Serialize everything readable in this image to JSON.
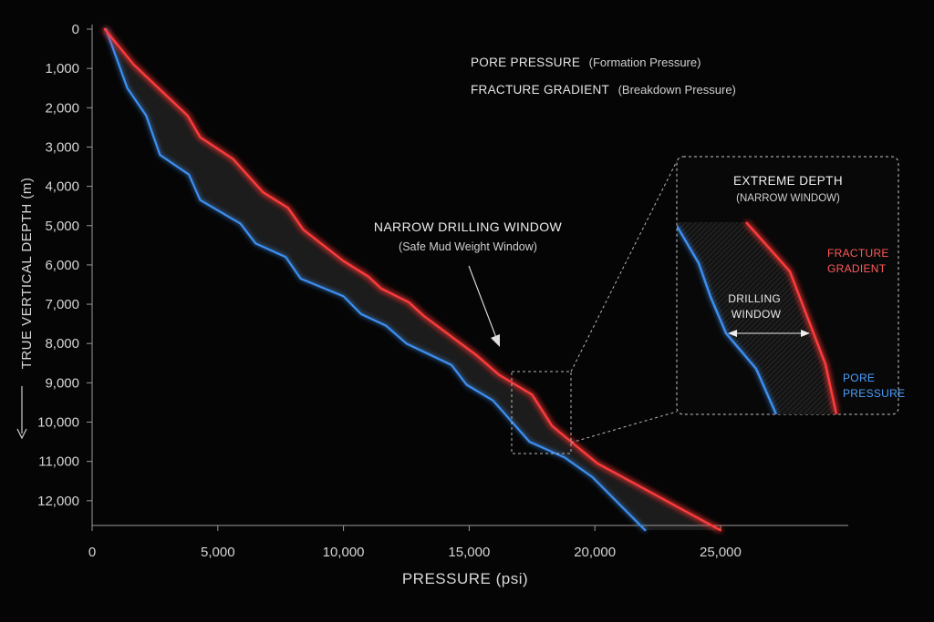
{
  "chart_data": {
    "type": "line",
    "xlabel": "PRESSURE (psi)",
    "ylabel": "TRUE VERTICAL DEPTH (m)",
    "x_ticks": [
      0,
      5000,
      10000,
      15000,
      20000,
      25000
    ],
    "x_tick_labels": [
      "0",
      "5,000",
      "10,000",
      "15,000",
      "20,000",
      "25,000"
    ],
    "y_ticks": [
      0,
      1000,
      2000,
      3000,
      4000,
      5000,
      6000,
      7000,
      8000,
      9000,
      10000,
      11000,
      12000
    ],
    "y_tick_labels": [
      "0",
      "1,000",
      "2,000",
      "3,000",
      "4,000",
      "5,000",
      "6,000",
      "7,000",
      "8,000",
      "9,000",
      "10,000",
      "11,000",
      "12,000"
    ],
    "xlim": [
      0,
      26000
    ],
    "ylim": [
      12850,
      0
    ],
    "y_inverted": true,
    "grid": false,
    "legend_position": "top-center",
    "colors": {
      "pore": "#3d8ff0",
      "fracture": "#ff3b3b",
      "window_fill": "#2a2a2a"
    },
    "series": [
      {
        "name": "PORE PRESSURE",
        "description": "(Formation Pressure)",
        "color_key": "pore",
        "points": [
          [
            550,
            0
          ],
          [
            1400,
            1500
          ],
          [
            2150,
            2200
          ],
          [
            2700,
            3200
          ],
          [
            3850,
            3700
          ],
          [
            4300,
            4350
          ],
          [
            5900,
            4950
          ],
          [
            6500,
            5450
          ],
          [
            7700,
            5800
          ],
          [
            8300,
            6350
          ],
          [
            10000,
            6800
          ],
          [
            10700,
            7250
          ],
          [
            11700,
            7550
          ],
          [
            12500,
            8000
          ],
          [
            14300,
            8550
          ],
          [
            14900,
            9050
          ],
          [
            15950,
            9450
          ],
          [
            17400,
            10500
          ],
          [
            18800,
            10900
          ],
          [
            19900,
            11400
          ],
          [
            22000,
            12750
          ]
        ]
      },
      {
        "name": "FRACTURE GRADIENT",
        "description": "(Breakdown Pressure)",
        "color_key": "fracture",
        "points": [
          [
            500,
            0
          ],
          [
            1650,
            900
          ],
          [
            2800,
            1600
          ],
          [
            3800,
            2200
          ],
          [
            4300,
            2750
          ],
          [
            5600,
            3300
          ],
          [
            6800,
            4150
          ],
          [
            7800,
            4550
          ],
          [
            8400,
            5100
          ],
          [
            10000,
            5900
          ],
          [
            11000,
            6300
          ],
          [
            11500,
            6600
          ],
          [
            12600,
            6950
          ],
          [
            13200,
            7300
          ],
          [
            15300,
            8300
          ],
          [
            16200,
            8800
          ],
          [
            17500,
            9300
          ],
          [
            18300,
            10100
          ],
          [
            20100,
            11050
          ],
          [
            25000,
            12750
          ]
        ]
      }
    ],
    "annotations": {
      "window_title": "NARROW DRILLING WINDOW",
      "window_subtitle": "(Safe Mud Weight Window)",
      "zoom_region": {
        "x": [
          16800,
          19300
        ],
        "y": [
          8800,
          10900
        ]
      },
      "inset": {
        "title": "EXTREME DEPTH",
        "subtitle": "(NARROW WINDOW)",
        "fracture_label": [
          "FRACTURE",
          "GRADIENT"
        ],
        "drilling_label": [
          "DRILLING",
          "WINDOW"
        ],
        "pore_label": [
          "PORE",
          "PRESSURE"
        ]
      }
    }
  }
}
